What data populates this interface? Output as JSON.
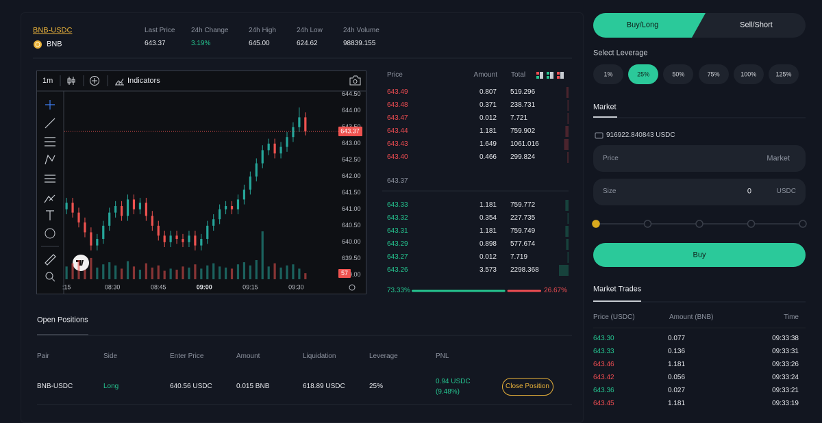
{
  "market": {
    "pair": "BNB-USDC",
    "base": "BNB",
    "stats": [
      {
        "label": "Last Price",
        "value": "643.37"
      },
      {
        "label": "24h Change",
        "value": "3.19%"
      },
      {
        "label": "24h High",
        "value": "645.00"
      },
      {
        "label": "24h Low",
        "value": "624.62"
      },
      {
        "label": "24h Volume",
        "value": "98839.155"
      }
    ]
  },
  "chart_toolbar": {
    "interval": "1m",
    "indicators": "Indicators"
  },
  "chart_data": {
    "type": "candlestick",
    "x": [
      495,
      497,
      499,
      501,
      503,
      505,
      507,
      509,
      511,
      513,
      515,
      517,
      519,
      521,
      523,
      525,
      527,
      529,
      531,
      533,
      535,
      537,
      539,
      541,
      543,
      545,
      547,
      549,
      551,
      553,
      555,
      557,
      559,
      561,
      563,
      565,
      567,
      569,
      571,
      573
    ],
    "open": [
      641.0,
      641.2,
      640.9,
      640.6,
      640.3,
      639.9,
      640.1,
      640.5,
      640.9,
      641.1,
      640.8,
      641.3,
      641.0,
      641.2,
      640.8,
      640.5,
      640.2,
      640.0,
      640.2,
      640.1,
      640.0,
      640.2,
      639.9,
      640.1,
      640.5,
      640.7,
      641.0,
      641.1,
      641.0,
      641.3,
      641.6,
      642.0,
      642.4,
      642.8,
      643.0,
      642.7,
      642.9,
      643.2,
      643.5,
      643.8
    ],
    "high": [
      641.35,
      641.35,
      641.05,
      640.75,
      640.45,
      640.25,
      640.65,
      641.05,
      641.25,
      641.25,
      641.45,
      641.45,
      641.35,
      641.35,
      640.95,
      640.65,
      640.35,
      640.35,
      640.35,
      640.25,
      640.35,
      640.35,
      640.25,
      640.65,
      640.85,
      641.15,
      641.25,
      641.25,
      641.45,
      641.75,
      642.15,
      642.55,
      642.95,
      643.15,
      643.15,
      643.05,
      643.35,
      643.65,
      644.1,
      643.95
    ],
    "low": [
      640.85,
      640.75,
      640.45,
      640.15,
      639.75,
      639.75,
      639.95,
      640.35,
      640.75,
      640.65,
      640.65,
      640.85,
      640.85,
      640.65,
      640.35,
      640.05,
      639.85,
      639.85,
      639.95,
      639.85,
      639.85,
      639.75,
      639.75,
      639.95,
      640.35,
      640.55,
      640.85,
      640.85,
      640.85,
      641.15,
      641.45,
      641.85,
      642.25,
      642.65,
      642.55,
      642.55,
      642.75,
      643.05,
      643.35,
      643.25
    ],
    "close": [
      641.2,
      640.9,
      640.6,
      640.3,
      639.9,
      640.1,
      640.5,
      640.9,
      641.1,
      640.8,
      641.3,
      641.0,
      641.2,
      640.8,
      640.5,
      640.2,
      640.0,
      640.2,
      640.1,
      640.0,
      640.2,
      639.9,
      640.1,
      640.5,
      640.7,
      641.0,
      641.1,
      641.0,
      641.3,
      641.6,
      642.0,
      642.4,
      642.8,
      643.0,
      642.7,
      642.9,
      643.2,
      643.5,
      643.8,
      643.37
    ],
    "volume": [
      120,
      150,
      180,
      90,
      200,
      110,
      140,
      160,
      130,
      100,
      170,
      120,
      90,
      150,
      110,
      130,
      80,
      100,
      90,
      120,
      110,
      140,
      100,
      130,
      150,
      120,
      110,
      100,
      140,
      160,
      130,
      180,
      450,
      120,
      150,
      110,
      130,
      140,
      100,
      57
    ],
    "last_price": 643.37,
    "xlim": [
      494.3,
      584
    ],
    "xticks": [
      {
        "value": 495,
        "label": ":15"
      },
      {
        "value": 510,
        "label": "08:30"
      },
      {
        "value": 525,
        "label": "08:45"
      },
      {
        "value": 540,
        "label": "09:00"
      },
      {
        "value": 555,
        "label": "09:15"
      },
      {
        "value": 570,
        "label": "09:30"
      }
    ],
    "ylim": [
      638.83,
      644.6
    ],
    "yticks": [
      {
        "value": 644.5,
        "label": "644.50"
      },
      {
        "value": 644,
        "label": "644.00"
      },
      {
        "value": 643.5,
        "label": "643.50"
      },
      {
        "value": 643,
        "label": "643.00"
      },
      {
        "value": 642.5,
        "label": "642.50"
      },
      {
        "value": 642,
        "label": "642.00"
      },
      {
        "value": 641.5,
        "label": "641.50"
      },
      {
        "value": 641,
        "label": "641.00"
      },
      {
        "value": 640.5,
        "label": "640.50"
      },
      {
        "value": 640,
        "label": "640.00"
      },
      {
        "value": 639.5,
        "label": "639.50"
      },
      {
        "value": 639,
        "label": "639.00"
      }
    ],
    "up_color": "#26a69a",
    "down_color": "#ef5350"
  },
  "order_book": {
    "headers": [
      "Price",
      "Amount",
      "Total"
    ],
    "ask_color": "#ef4d52",
    "bid_color": "#25c590",
    "asks": [
      [
        "643.49",
        "0.807",
        "519.296"
      ],
      [
        "643.48",
        "0.371",
        "238.731"
      ],
      [
        "643.47",
        "0.012",
        "7.721"
      ],
      [
        "643.44",
        "1.181",
        "759.902"
      ],
      [
        "643.43",
        "1.649",
        "1061.016"
      ],
      [
        "643.40",
        "0.466",
        "299.824"
      ]
    ],
    "mid": "643.37",
    "bids": [
      [
        "643.33",
        "1.181",
        "759.772"
      ],
      [
        "643.32",
        "0.354",
        "227.735"
      ],
      [
        "643.31",
        "1.181",
        "759.749"
      ],
      [
        "643.29",
        "0.898",
        "577.674"
      ],
      [
        "643.27",
        "0.012",
        "7.719"
      ],
      [
        "643.26",
        "3.573",
        "2298.368"
      ]
    ],
    "buy_ratio": "73.33%",
    "sell_ratio": "26.67%"
  },
  "positions": {
    "title": "Open Positions",
    "headers": [
      "Pair",
      "Side",
      "Enter Price",
      "Amount",
      "Liquidation",
      "Leverage",
      "PNL"
    ],
    "rows": [
      {
        "pair": "BNB-USDC",
        "side": "Long",
        "enter_price": "640.56 USDC",
        "amount": "0.015 BNB",
        "liquidation": "618.89 USDC",
        "leverage": "25%",
        "pnl": [
          "0.94 USDC",
          "(9.48%)"
        ]
      }
    ],
    "action": "Close Position"
  },
  "trade_panel": {
    "tabs": [
      "Buy/Long",
      "Sell/Short"
    ],
    "leverage_label": "Select Leverage",
    "leverage_options": [
      "1%",
      "25%",
      "50%",
      "75%",
      "100%",
      "125%"
    ],
    "active_leverage": "25%",
    "order_type": "Market",
    "balance": "916922.840843 USDC",
    "price_label": "Price",
    "price_value": "Market",
    "size_label": "Size",
    "size_value": "0",
    "size_unit": "USDC",
    "submit": "Buy"
  },
  "market_trades": {
    "title": "Market Trades",
    "headers": [
      "Price (USDC)",
      "Amount (BNB)",
      "Time"
    ],
    "rows": [
      {
        "price": "643.30",
        "amount": "0.077",
        "time": "09:33:38",
        "color": "#25c590"
      },
      {
        "price": "643.33",
        "amount": "0.136",
        "time": "09:33:31",
        "color": "#25c590"
      },
      {
        "price": "643.46",
        "amount": "1.181",
        "time": "09:33:26",
        "color": "#ef4d52"
      },
      {
        "price": "643.42",
        "amount": "0.056",
        "time": "09:33:24",
        "color": "#ef4d52"
      },
      {
        "price": "643.36",
        "amount": "0.027",
        "time": "09:33:21",
        "color": "#25c590"
      },
      {
        "price": "643.45",
        "amount": "1.181",
        "time": "09:33:19",
        "color": "#ef4d52"
      }
    ]
  }
}
